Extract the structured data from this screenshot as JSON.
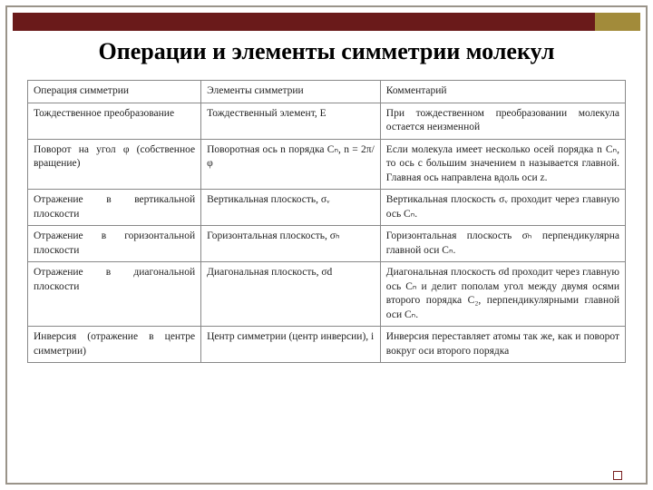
{
  "title": "Операции и элементы симметрии молекул",
  "colors": {
    "frame_border": "#9a948a",
    "top_bar": "#6a1a1a",
    "top_bar_accent": "#a28b3a",
    "table_border": "#888888",
    "text": "#222222",
    "footer_square_border": "#7a2020",
    "background": "#ffffff"
  },
  "typography": {
    "title_fontsize": 26,
    "title_weight": "bold",
    "body_fontsize": 11.5,
    "font_family": "Times New Roman"
  },
  "table": {
    "columns": [
      {
        "header": "Операция симметрии",
        "width": "29%"
      },
      {
        "header": "Элементы симметрии",
        "width": "30%"
      },
      {
        "header": "Комментарий",
        "width": "41%"
      }
    ],
    "rows": [
      [
        "Тождественное преобразование",
        "Тождественный элемент, E",
        "При тождественном преобразовании молекула остается неизменной"
      ],
      [
        "Поворот на угол φ (собственное вращение)",
        "Поворотная ось n порядка Cₙ, n = 2π/φ",
        "Если молекула имеет несколько осей порядка n Cₙ, то ось с большим значением n называется главной. Главная ось направлена вдоль оси z."
      ],
      [
        "Отражение в вертикальной плоскости",
        "Вертикальная плоскость, σᵥ",
        "Вертикальная плоскость σᵥ проходит через главную ось Cₙ."
      ],
      [
        "Отражение в горизонтальной плоскости",
        "Горизонтальная плоскость, σₕ",
        "Горизонтальная плоскость σₕ перпендикулярна главной оси Cₙ."
      ],
      [
        "Отражение в диагональной плоскости",
        "Диагональная плоскость, σd",
        "Диагональная плоскость σd проходит через главную ось Cₙ и делит пополам угол между двумя осями второго порядка C₂, перпендикулярными главной оси Cₙ."
      ],
      [
        "Инверсия (отражение в центре симметрии)",
        "Центр симметрии (центр инверсии), i",
        "Инверсия переставляет атомы так же, как и поворот вокруг оси второго порядка"
      ]
    ]
  }
}
